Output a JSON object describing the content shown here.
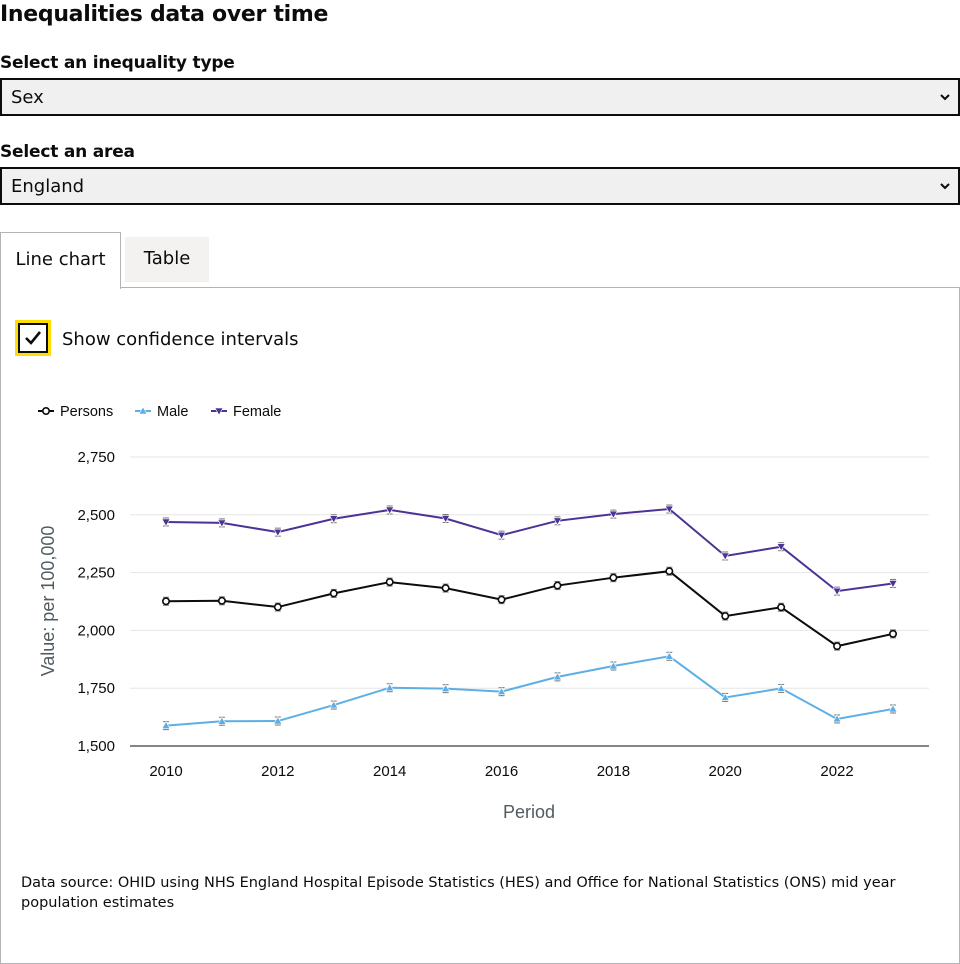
{
  "page": {
    "title": "Inequalities data over time"
  },
  "inequality_select": {
    "label": "Select an inequality type",
    "value": "Sex"
  },
  "area_select": {
    "label": "Select an area",
    "value": "England"
  },
  "tabs": [
    {
      "label": "Line chart",
      "active": true
    },
    {
      "label": "Table",
      "active": false
    }
  ],
  "confidence": {
    "label": "Show confidence intervals",
    "checked": true
  },
  "colors": {
    "persons": "#0b0c0c",
    "male": "#5eaee6",
    "female": "#4b3294",
    "focus": "#ffdd00"
  },
  "chart_data": {
    "type": "line",
    "xlabel": "Period",
    "ylabel": "Value: per 100,000",
    "x": [
      2010,
      2011,
      2012,
      2013,
      2014,
      2015,
      2016,
      2017,
      2018,
      2019,
      2020,
      2021,
      2022,
      2023
    ],
    "xticks": [
      "2010",
      "2012",
      "2014",
      "2016",
      "2018",
      "2020",
      "2022"
    ],
    "yticks": [
      "1,500",
      "1,750",
      "2,000",
      "2,250",
      "2,500",
      "2,750"
    ],
    "ylim": [
      1500,
      2750
    ],
    "grid": true,
    "legend": "top-left",
    "series": [
      {
        "name": "Persons",
        "color": "#0b0c0c",
        "marker": "circle",
        "values": [
          2126,
          2128,
          2101,
          2160,
          2209,
          2183,
          2133,
          2194,
          2228,
          2256,
          2062,
          2100,
          1932,
          1985
        ]
      },
      {
        "name": "Male",
        "color": "#5eaee6",
        "marker": "triangle-up",
        "values": [
          1588,
          1607,
          1608,
          1677,
          1752,
          1748,
          1735,
          1799,
          1846,
          1888,
          1710,
          1749,
          1617,
          1660
        ]
      },
      {
        "name": "Female",
        "color": "#4b3294",
        "marker": "triangle-down",
        "values": [
          2469,
          2465,
          2425,
          2483,
          2521,
          2484,
          2412,
          2474,
          2503,
          2525,
          2322,
          2362,
          2170,
          2203
        ]
      }
    ]
  },
  "source": {
    "text": "Data source: OHID using NHS England Hospital Episode Statistics (HES) and Office for National Statistics (ONS) mid year population estimates"
  }
}
